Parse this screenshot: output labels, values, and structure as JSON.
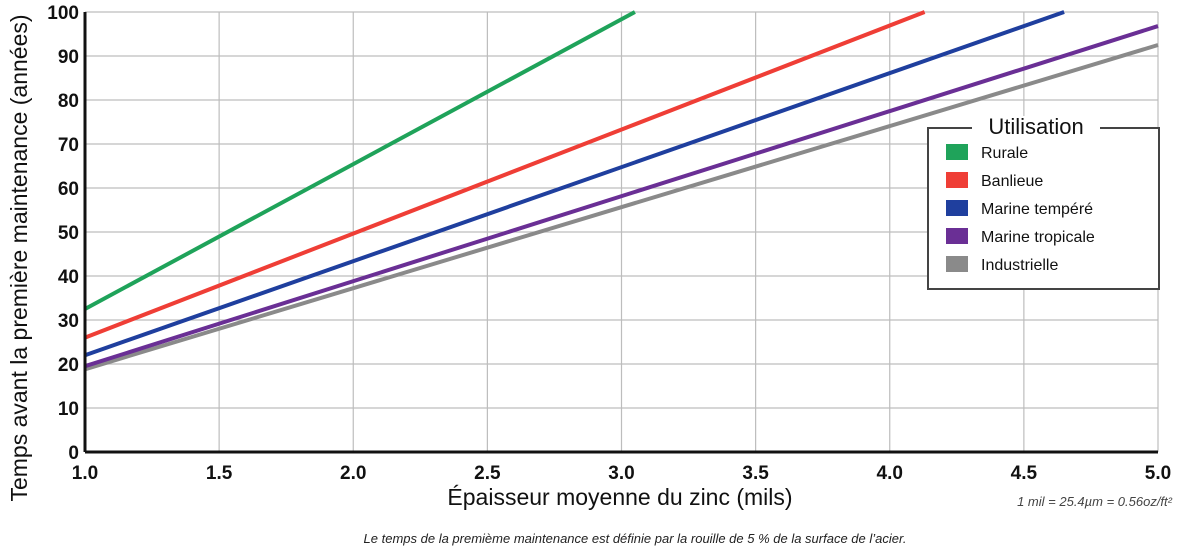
{
  "chart_data": {
    "type": "line",
    "title": "",
    "xlabel": "Épaisseur moyenne du zinc (mils)",
    "ylabel": "Temps avant la première maintenance (années)",
    "xlim": [
      1.0,
      5.0
    ],
    "ylim": [
      0,
      100
    ],
    "x_ticks": [
      1.0,
      1.5,
      2.0,
      2.5,
      3.0,
      3.5,
      4.0,
      4.5,
      5.0
    ],
    "x_tick_labels": [
      "1.0",
      "1.5",
      "2.0",
      "2.5",
      "3.0",
      "3.5",
      "4.0",
      "4.5",
      "5.0"
    ],
    "y_ticks": [
      0,
      10,
      20,
      30,
      40,
      50,
      60,
      70,
      80,
      90,
      100
    ],
    "y_tick_labels": [
      "0",
      "10",
      "20",
      "30",
      "40",
      "50",
      "60",
      "70",
      "80",
      "90",
      "100"
    ],
    "grid": true,
    "legend_title": "Utilisation",
    "legend_position": "right",
    "series": [
      {
        "name": "Rurale",
        "color": "#1fa35a",
        "x": [
          1.0,
          3.05
        ],
        "y": [
          32.5,
          100
        ]
      },
      {
        "name": "Banlieue",
        "color": "#ef3e36",
        "x": [
          1.0,
          4.13
        ],
        "y": [
          26,
          100
        ]
      },
      {
        "name": "Marine tempéré",
        "color": "#1f3f9e",
        "x": [
          1.0,
          4.65
        ],
        "y": [
          22,
          100
        ]
      },
      {
        "name": "Marine tropicale",
        "color": "#6a2f95",
        "x": [
          1.0,
          5.0
        ],
        "y": [
          19.5,
          96.8
        ]
      },
      {
        "name": "Industrielle",
        "color": "#8a8a8a",
        "x": [
          1.0,
          5.0
        ],
        "y": [
          18.8,
          92.5
        ]
      }
    ],
    "unit_note": "1 mil = 25.4µm = 0.56oz/ft²",
    "footnote": "Le temps de la premième maintenance est définie par la rouille de 5 % de la surface de l’acier."
  }
}
